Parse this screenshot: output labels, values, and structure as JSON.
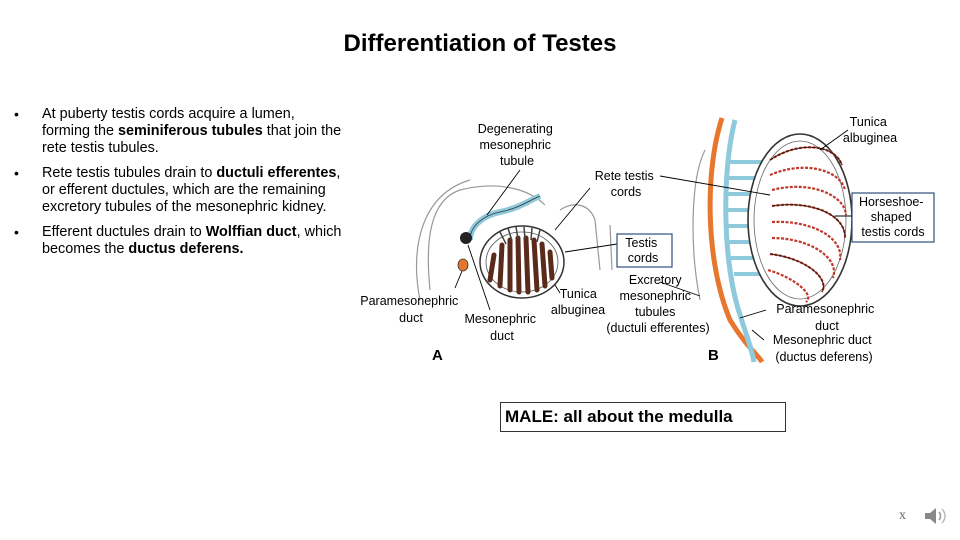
{
  "slide": {
    "title": "Differentiation of Testes",
    "bullets": [
      {
        "parts": [
          {
            "t": "At puberty testis cords acquire a lumen, forming the ",
            "b": false
          },
          {
            "t": "seminiferous tubules",
            "b": true
          },
          {
            "t": " that join the rete testis tubules.",
            "b": false
          }
        ]
      },
      {
        "parts": [
          {
            "t": "Rete testis tubules drain to ",
            "b": false
          },
          {
            "t": "ductuli efferentes",
            "b": true
          },
          {
            "t": ", or efferent ductules, which are the remaining excretory tubules of the mesonephric kidney.",
            "b": false
          }
        ]
      },
      {
        "parts": [
          {
            "t": "Efferent ductules drain to ",
            "b": false
          },
          {
            "t": "Wolffian duct",
            "b": true
          },
          {
            "t": ", which becomes the ",
            "b": false
          },
          {
            "t": "ductus deferens.",
            "b": true
          }
        ]
      }
    ],
    "callout": "MALE: all about the medulla",
    "footer_mark": "x"
  },
  "diagram": {
    "panel_a": {
      "letter": "A",
      "degenerating": [
        "Degenerating",
        "mesonephric",
        "tubule"
      ],
      "rete": [
        "Rete testis",
        "cords"
      ],
      "testis_cords": [
        "Testis",
        "cords"
      ],
      "paramesonephric": [
        "Paramesonephric",
        "duct"
      ],
      "mesonephric": [
        "Mesonephric",
        "duct"
      ],
      "tunica": [
        "Tunica",
        "albuginea"
      ]
    },
    "panel_b": {
      "letter": "B",
      "excretory": [
        "Excretory",
        "mesonephric",
        "tubules",
        "(ductuli efferentes)"
      ],
      "tunica": [
        "Tunica",
        "albuginea"
      ],
      "horseshoe": [
        "Horseshoe-",
        "shaped",
        "testis cords"
      ],
      "paramesonephric": [
        "Paramesonephric",
        "duct"
      ],
      "mesonephric": [
        "Mesonephric duct",
        "(ductus deferens)"
      ]
    },
    "colors": {
      "blue": "#8ec9dc",
      "orange": "#e8772e",
      "red": "#c0392b",
      "box": "#2f4f7f"
    }
  }
}
